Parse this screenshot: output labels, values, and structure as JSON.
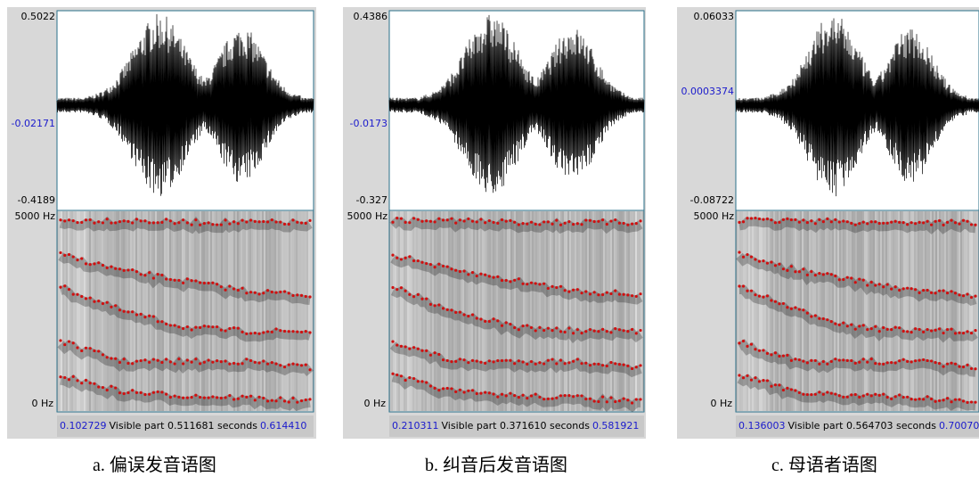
{
  "panels": [
    {
      "amp_max": "0.5022",
      "amp_center": "-0.02171",
      "amp_min": "-0.4189",
      "freq_max": "5000 Hz",
      "freq_min": "0 Hz",
      "time_start": "0.102729",
      "visible": "Visible part 0.511681 seconds",
      "time_end": "0.614410",
      "caption": "a. 偏误发音语图"
    },
    {
      "amp_max": "0.4386",
      "amp_center": "-0.0173",
      "amp_min": "-0.327",
      "freq_max": "5000 Hz",
      "freq_min": "0 Hz",
      "time_start": "0.210311",
      "visible": "Visible part 0.371610 seconds",
      "time_end": "0.581921",
      "caption": "b. 纠音后发音语图"
    },
    {
      "amp_max": "0.06033",
      "amp_center": "0.0003374",
      "amp_min": "-0.08722",
      "freq_max": "5000 Hz",
      "freq_min": "0 Hz",
      "time_start": "0.136003",
      "visible": "Visible part 0.564703 seconds",
      "time_end": "0.70070",
      "caption": "c. 母语者语图"
    }
  ]
}
